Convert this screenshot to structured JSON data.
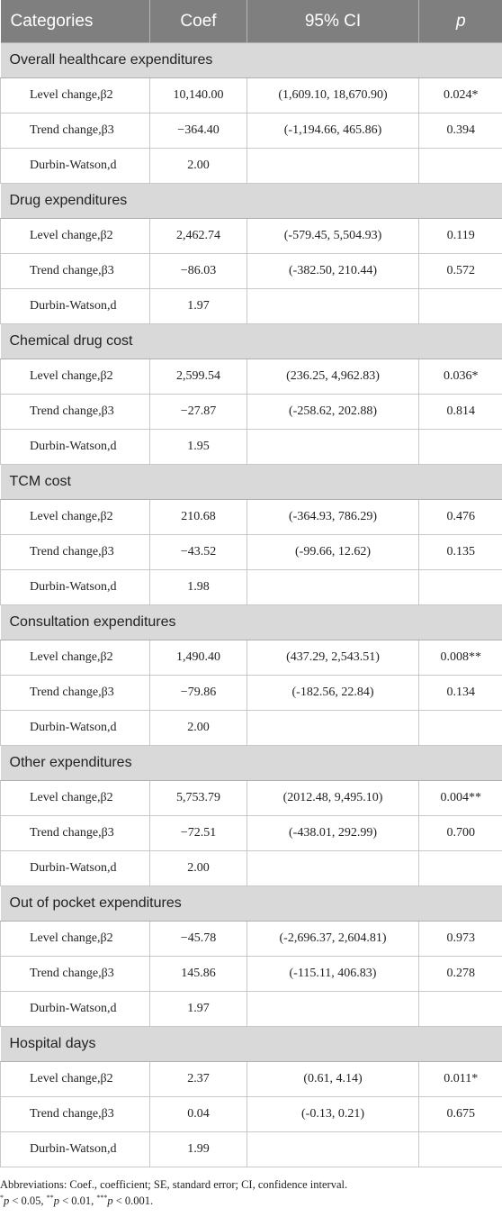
{
  "header": {
    "categories": "Categories",
    "coef": "Coef",
    "ci": "95% CI",
    "p": "p"
  },
  "groups": [
    {
      "title": "Overall healthcare expenditures",
      "rows": [
        {
          "label": "Level change,β2",
          "coef": "10,140.00",
          "ci": "(1,609.10, 18,670.90)",
          "p": "0.024*"
        },
        {
          "label": "Trend change,β3",
          "coef": "−364.40",
          "ci": "(-1,194.66, 465.86)",
          "p": "0.394"
        },
        {
          "label": "Durbin-Watson,d",
          "coef": "2.00",
          "ci": "",
          "p": ""
        }
      ]
    },
    {
      "title": "Drug expenditures",
      "rows": [
        {
          "label": "Level change,β2",
          "coef": "2,462.74",
          "ci": "(-579.45, 5,504.93)",
          "p": "0.119"
        },
        {
          "label": "Trend change,β3",
          "coef": "−86.03",
          "ci": "(-382.50, 210.44)",
          "p": "0.572"
        },
        {
          "label": "Durbin-Watson,d",
          "coef": "1.97",
          "ci": "",
          "p": ""
        }
      ]
    },
    {
      "title": "Chemical drug cost",
      "rows": [
        {
          "label": "Level change,β2",
          "coef": "2,599.54",
          "ci": "(236.25, 4,962.83)",
          "p": "0.036*"
        },
        {
          "label": "Trend change,β3",
          "coef": "−27.87",
          "ci": "(-258.62, 202.88)",
          "p": "0.814"
        },
        {
          "label": "Durbin-Watson,d",
          "coef": "1.95",
          "ci": "",
          "p": ""
        }
      ]
    },
    {
      "title": "TCM cost",
      "rows": [
        {
          "label": "Level change,β2",
          "coef": "210.68",
          "ci": "(-364.93, 786.29)",
          "p": "0.476"
        },
        {
          "label": "Trend change,β3",
          "coef": "−43.52",
          "ci": "(-99.66, 12.62)",
          "p": "0.135"
        },
        {
          "label": "Durbin-Watson,d",
          "coef": "1.98",
          "ci": "",
          "p": ""
        }
      ]
    },
    {
      "title": "Consultation expenditures",
      "rows": [
        {
          "label": "Level change,β2",
          "coef": "1,490.40",
          "ci": "(437.29, 2,543.51)",
          "p": "0.008**"
        },
        {
          "label": "Trend change,β3",
          "coef": "−79.86",
          "ci": "(-182.56, 22.84)",
          "p": "0.134"
        },
        {
          "label": "Durbin-Watson,d",
          "coef": "2.00",
          "ci": "",
          "p": ""
        }
      ]
    },
    {
      "title": "Other expenditures",
      "rows": [
        {
          "label": "Level change,β2",
          "coef": "5,753.79",
          "ci": "(2012.48, 9,495.10)",
          "p": "0.004**"
        },
        {
          "label": "Trend change,β3",
          "coef": "−72.51",
          "ci": "(-438.01, 292.99)",
          "p": "0.700"
        },
        {
          "label": "Durbin-Watson,d",
          "coef": "2.00",
          "ci": "",
          "p": ""
        }
      ]
    },
    {
      "title": "Out of pocket expenditures",
      "rows": [
        {
          "label": "Level change,β2",
          "coef": "−45.78",
          "ci": "(-2,696.37, 2,604.81)",
          "p": "0.973"
        },
        {
          "label": "Trend change,β3",
          "coef": "145.86",
          "ci": "(-115.11, 406.83)",
          "p": "0.278"
        },
        {
          "label": "Durbin-Watson,d",
          "coef": "1.97",
          "ci": "",
          "p": ""
        }
      ]
    },
    {
      "title": "Hospital days",
      "rows": [
        {
          "label": "Level change,β2",
          "coef": "2.37",
          "ci": "(0.61, 4.14)",
          "p": "0.011*"
        },
        {
          "label": "Trend change,β3",
          "coef": "0.04",
          "ci": "(-0.13, 0.21)",
          "p": "0.675"
        },
        {
          "label": "Durbin-Watson,d",
          "coef": "1.99",
          "ci": "",
          "p": ""
        }
      ]
    }
  ],
  "footnotes": {
    "abbreviations": "Abbreviations: Coef., coefficient; SE, standard error; CI, confidence interval.",
    "sig": {
      "p1": "p",
      "t1": " < 0.05, ",
      "p2": "p",
      "t2": " < 0.01, ",
      "p3": "p",
      "t3": " < 0.001."
    }
  }
}
